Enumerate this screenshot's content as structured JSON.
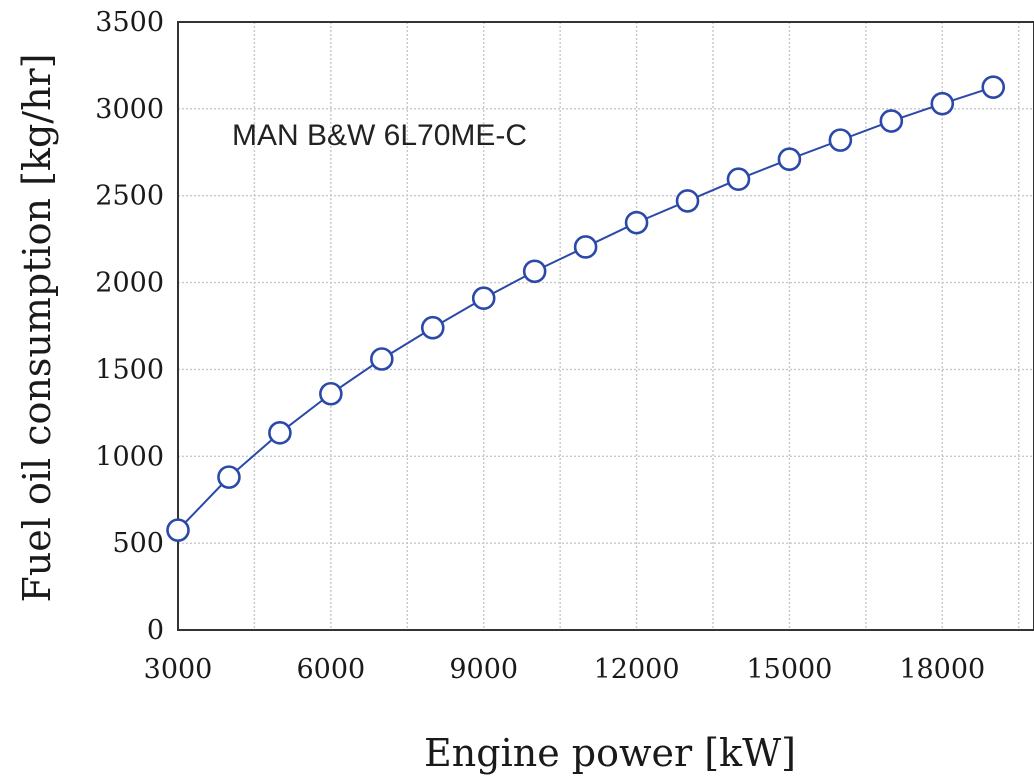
{
  "chart_data": {
    "type": "line",
    "title": "",
    "annotation": "MAN B&W 6L70ME-C",
    "xlabel": "Engine power [kW]",
    "ylabel": "Fuel oil consumption [kg/hr]",
    "xlim": [
      3000,
      19800
    ],
    "ylim": [
      0,
      3500
    ],
    "xticks": [
      3000,
      6000,
      9000,
      12000,
      15000,
      18000
    ],
    "yticks": [
      0,
      500,
      1000,
      1500,
      2000,
      2500,
      3000,
      3500
    ],
    "grid": true,
    "marker": "open-circle",
    "line_color": "#2b49a8",
    "x": [
      3000,
      4000,
      5000,
      6000,
      7000,
      8000,
      9000,
      10000,
      11000,
      12000,
      13000,
      14000,
      15000,
      16000,
      17000,
      18000,
      19000
    ],
    "series": [
      {
        "values": [
          575,
          880,
          1135,
          1360,
          1560,
          1740,
          1910,
          2065,
          2205,
          2345,
          2470,
          2595,
          2710,
          2820,
          2930,
          3030,
          3125
        ]
      }
    ]
  }
}
